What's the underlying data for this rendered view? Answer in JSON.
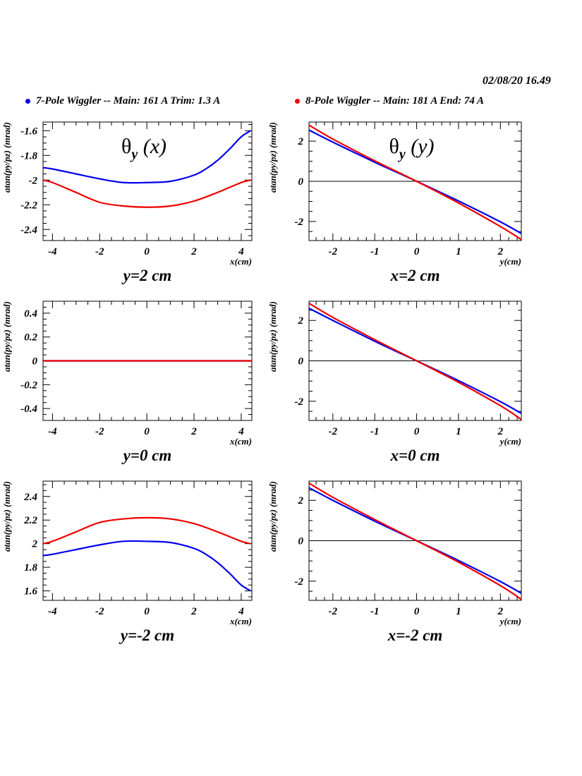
{
  "timestamp": "02/08/20   16.49",
  "legend": [
    {
      "label": "7-Pole Wiggler --  Main: 161 A    Trim: 1.3 A",
      "color": "#0000ee"
    },
    {
      "label": "8-Pole Wiggler --  Main: 181 A    End: 74 A",
      "color": "#ee0000"
    }
  ],
  "chart_data": [
    {
      "type": "line",
      "title": "θ",
      "title_sub": "y",
      "title_suffix": " (x)",
      "caption": "y=2 cm",
      "xlabel": "x(cm)",
      "ylabel": "atan(py/pz) (mrad)",
      "xlim": [
        -4.4,
        4.45
      ],
      "ylim": [
        -2.49,
        -1.53
      ],
      "xticks": [
        -4,
        -2,
        0,
        2,
        4
      ],
      "xminor": 0.5,
      "yticks": [
        -2.4,
        -2.2,
        -2,
        -1.8,
        -1.6
      ],
      "yminor": 0.05,
      "zero_line": false,
      "series": [
        {
          "color": "#0000ee",
          "x": [
            -4.4,
            -4,
            -3,
            -2,
            -1,
            0,
            1,
            2,
            2.5,
            3,
            3.5,
            4,
            4.4
          ],
          "y": [
            -1.9,
            -1.91,
            -1.95,
            -1.99,
            -2.02,
            -2.02,
            -2.01,
            -1.96,
            -1.91,
            -1.84,
            -1.75,
            -1.65,
            -1.6
          ]
        },
        {
          "color": "#ee0000",
          "x": [
            -4.4,
            -4,
            -3,
            -2,
            -1,
            0,
            1,
            2,
            3,
            4,
            4.4
          ],
          "y": [
            -2.0,
            -2.02,
            -2.1,
            -2.18,
            -2.21,
            -2.22,
            -2.21,
            -2.17,
            -2.1,
            -2.02,
            -2.0
          ]
        }
      ]
    },
    {
      "type": "line",
      "title": "θ",
      "title_sub": "y",
      "title_suffix": " (y)",
      "caption": "x=2 cm",
      "xlabel": "y(cm)",
      "ylabel": "atan(py/pz) (mrad)",
      "xlim": [
        -2.57,
        2.5
      ],
      "ylim": [
        -2.95,
        2.95
      ],
      "xticks": [
        -2,
        -1,
        0,
        1,
        2
      ],
      "xminor": 0.2,
      "yticks": [
        -2,
        0,
        2
      ],
      "yminor": 0.5,
      "zero_line": true,
      "series": [
        {
          "color": "#0000ee",
          "x": [
            -2.57,
            -2,
            -1,
            0,
            1,
            2,
            2.5
          ],
          "y": [
            2.55,
            1.95,
            0.95,
            0,
            -0.98,
            -2.02,
            -2.6
          ]
        },
        {
          "color": "#ee0000",
          "x": [
            -2.57,
            -2,
            -1,
            0,
            1,
            2,
            2.5
          ],
          "y": [
            2.8,
            2.1,
            1.02,
            0,
            -1.08,
            -2.25,
            -2.9
          ]
        }
      ]
    },
    {
      "type": "line",
      "title": "",
      "caption": "y=0 cm",
      "xlabel": "x(cm)",
      "ylabel": "atan(py/pz) (mrad)",
      "xlim": [
        -4.4,
        4.45
      ],
      "ylim": [
        -0.5,
        0.5
      ],
      "xticks": [
        -4,
        -2,
        0,
        2,
        4
      ],
      "xminor": 0.5,
      "yticks": [
        -0.4,
        -0.2,
        0,
        0.2,
        0.4
      ],
      "yminor": 0.05,
      "zero_line": true,
      "series": [
        {
          "color": "#0000ee",
          "x": [
            -4.4,
            4.45
          ],
          "y": [
            0,
            0
          ]
        },
        {
          "color": "#ee0000",
          "x": [
            -4.4,
            4.45
          ],
          "y": [
            0,
            0
          ]
        }
      ]
    },
    {
      "type": "line",
      "title": "",
      "caption": "x=0 cm",
      "xlabel": "y(cm)",
      "ylabel": "atan(py/pz) (mrad)",
      "xlim": [
        -2.57,
        2.5
      ],
      "ylim": [
        -2.95,
        2.95
      ],
      "xticks": [
        -2,
        -1,
        0,
        1,
        2
      ],
      "xminor": 0.2,
      "yticks": [
        -2,
        0,
        2
      ],
      "yminor": 0.5,
      "zero_line": true,
      "series": [
        {
          "color": "#0000ee",
          "x": [
            -2.57,
            -2,
            -1,
            0,
            1,
            2,
            2.5
          ],
          "y": [
            2.6,
            2.0,
            0.97,
            0,
            -0.98,
            -2.02,
            -2.6
          ]
        },
        {
          "color": "#ee0000",
          "x": [
            -2.57,
            -2,
            -1,
            0,
            1,
            2,
            2.5
          ],
          "y": [
            2.85,
            2.15,
            1.05,
            0,
            -1.06,
            -2.22,
            -2.9
          ]
        }
      ]
    },
    {
      "type": "line",
      "title": "",
      "caption": "y=-2 cm",
      "xlabel": "x(cm)",
      "ylabel": "atan(py/pz) (mrad)",
      "xlim": [
        -4.4,
        4.45
      ],
      "ylim": [
        1.52,
        2.53
      ],
      "xticks": [
        -4,
        -2,
        0,
        2,
        4
      ],
      "xminor": 0.5,
      "yticks": [
        1.6,
        1.8,
        2,
        2.2,
        2.4
      ],
      "yminor": 0.05,
      "zero_line": false,
      "series": [
        {
          "color": "#0000ee",
          "x": [
            -4.4,
            -4,
            -3,
            -2,
            -1,
            0,
            1,
            2,
            2.5,
            3,
            3.5,
            4,
            4.4
          ],
          "y": [
            1.9,
            1.91,
            1.95,
            1.99,
            2.02,
            2.02,
            2.01,
            1.96,
            1.91,
            1.84,
            1.75,
            1.65,
            1.6
          ]
        },
        {
          "color": "#ee0000",
          "x": [
            -4.4,
            -4,
            -3,
            -2,
            -1,
            0,
            1,
            2,
            3,
            4,
            4.4
          ],
          "y": [
            2.0,
            2.02,
            2.1,
            2.18,
            2.21,
            2.22,
            2.21,
            2.17,
            2.1,
            2.02,
            2.0
          ]
        }
      ]
    },
    {
      "type": "line",
      "title": "",
      "caption": "x=-2 cm",
      "xlabel": "y(cm)",
      "ylabel": "atan(py/pz) (mrad)",
      "xlim": [
        -2.57,
        2.5
      ],
      "ylim": [
        -2.95,
        2.95
      ],
      "xticks": [
        -2,
        -1,
        0,
        1,
        2
      ],
      "xminor": 0.2,
      "yticks": [
        -2,
        0,
        2
      ],
      "yminor": 0.5,
      "zero_line": true,
      "series": [
        {
          "color": "#0000ee",
          "x": [
            -2.57,
            -2,
            -1,
            0,
            1,
            2,
            2.5
          ],
          "y": [
            2.62,
            2.0,
            0.97,
            0,
            -0.98,
            -2.02,
            -2.6
          ]
        },
        {
          "color": "#ee0000",
          "x": [
            -2.57,
            -2,
            -1,
            0,
            1,
            2,
            2.5
          ],
          "y": [
            2.85,
            2.15,
            1.05,
            0,
            -1.06,
            -2.22,
            -2.9
          ]
        }
      ]
    }
  ]
}
